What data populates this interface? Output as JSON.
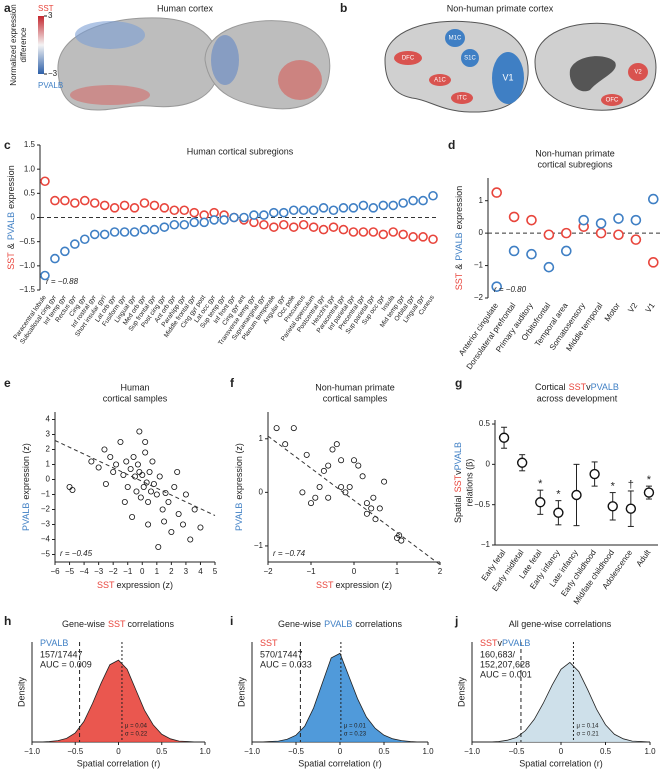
{
  "panel_a": {
    "panel_label": "a",
    "title": "Human cortex",
    "colorbar": {
      "top_label": "SST",
      "bottom_label": "PVALB",
      "label_lines": [
        "Normalized expression",
        "difference"
      ],
      "lim": [
        -3,
        3
      ],
      "ticks": [
        3,
        {
          "value": -3,
          "label": "−3"
        }
      ]
    }
  },
  "panel_b": {
    "panel_label": "b",
    "title": "Non-human primate cortex",
    "regions": [
      "DFC",
      "M1C",
      "S1C",
      "A1C",
      "ITC",
      "V1",
      "V2",
      "OFC"
    ]
  },
  "chart_data": [
    {
      "type": "dot",
      "panel_label": "c",
      "title": "Human cortical subregions",
      "ylabel_parts": [
        {
          "text": "SST",
          "color": "#e8453c"
        },
        {
          "text": "&",
          "color": "#222"
        },
        {
          "text": "PVALB",
          "color": "#3f7fc4"
        },
        {
          "text": "expression",
          "color": "#222"
        }
      ],
      "r_text": "r = −0.88",
      "refline": 0,
      "ylim": [
        -1.5,
        1.5
      ],
      "yticks": [
        {
          "value": 1.5,
          "label": "1.5"
        },
        {
          "value": 1,
          "label": "1.0"
        },
        {
          "value": 0.5,
          "label": "0.5"
        },
        0,
        {
          "value": -0.5,
          "label": "−0.5"
        },
        {
          "value": -1,
          "label": "−1.0"
        },
        {
          "value": -1.5,
          "label": "−1.5"
        }
      ],
      "categories": [
        "Paracentral lobule",
        "Subcallosal cing gyr",
        "Inf temp gyr",
        "Rectus gyr",
        "Cing gyr",
        "Inf rostral gyr",
        "Short insular gyri",
        "Lat orb gyr",
        "Fusiform gyr",
        "Lingual gyr",
        "Med orb gyr",
        "Sup frontal gyr",
        "Post cing gyr",
        "Ant orb gyr",
        "Parahipp gyr",
        "Middle frontal gyr",
        "Cing gyr post",
        "Lat occ gyr",
        "Sup temp gyr",
        "Inf front gyr",
        "Cing gyr ant",
        "Transverse temp gyr",
        "Supramarginal gyr",
        "Planum temporale",
        "Angular gyr",
        "Occ pole",
        "Precuneus",
        "Parietal operculum",
        "Postcentral gyr",
        "Heschl's gyr",
        "Paracentral gyr",
        "Inf parietal gyr",
        "Precentral gyr",
        "Sup parietal gyr",
        "Sup occ gyr",
        "Insula",
        "Mid temp gyr",
        "Orbital gyr",
        "Lingual gyr",
        "Cuneus"
      ],
      "series": [
        {
          "name": "SST",
          "color": "#e8453c",
          "values": [
            0.75,
            0.35,
            0.35,
            0.3,
            0.35,
            0.3,
            0.25,
            0.2,
            0.25,
            0.2,
            0.3,
            0.25,
            0.2,
            0.15,
            0.15,
            0.1,
            0.05,
            0.1,
            0.05,
            0.0,
            -0.05,
            -0.1,
            -0.15,
            -0.2,
            -0.15,
            -0.2,
            -0.15,
            -0.2,
            -0.25,
            -0.2,
            -0.25,
            -0.3,
            -0.3,
            -0.3,
            -0.35,
            -0.3,
            -0.35,
            -0.4,
            -0.4,
            -0.45
          ]
        },
        {
          "name": "PVALB",
          "color": "#3f7fc4",
          "values": [
            -1.2,
            -0.85,
            -0.7,
            -0.55,
            -0.45,
            -0.35,
            -0.35,
            -0.3,
            -0.3,
            -0.3,
            -0.25,
            -0.25,
            -0.2,
            -0.15,
            -0.15,
            -0.1,
            -0.1,
            -0.05,
            -0.05,
            0.0,
            0.0,
            0.05,
            0.05,
            0.1,
            0.1,
            0.15,
            0.15,
            0.15,
            0.2,
            0.15,
            0.2,
            0.2,
            0.25,
            0.2,
            0.25,
            0.25,
            0.3,
            0.35,
            0.35,
            0.45
          ]
        }
      ]
    },
    {
      "type": "dot",
      "panel_label": "d",
      "title_lines": [
        "Non-human primate",
        "cortical subregions"
      ],
      "ylabel_parts": [
        {
          "text": "SST",
          "color": "#e8453c"
        },
        {
          "text": "&",
          "color": "#222"
        },
        {
          "text": "PVALB",
          "color": "#3f7fc4"
        },
        {
          "text": "expression",
          "color": "#222"
        }
      ],
      "r_text": "r = −0.80",
      "refline": 0,
      "ylim": [
        -2,
        1.7
      ],
      "yticks": [
        1,
        0,
        {
          "value": -1,
          "label": "−1"
        },
        {
          "value": -2,
          "label": "−2"
        }
      ],
      "categories": [
        "Anterior cingulate",
        "Dorsolateral prefrontal",
        "Primary auditory",
        "Orbitofrontal",
        "Temporal area",
        "Somatosensory",
        "Middle temporal",
        "Motor",
        "V2",
        "V1"
      ],
      "series": [
        {
          "name": "SST",
          "color": "#e8453c",
          "values": [
            1.25,
            0.5,
            0.4,
            -0.05,
            0.0,
            0.2,
            0.0,
            -0.05,
            -0.2,
            -0.9
          ]
        },
        {
          "name": "PVALB",
          "color": "#3f7fc4",
          "values": [
            -1.65,
            -0.55,
            -0.65,
            -1.05,
            -0.55,
            0.4,
            0.3,
            0.45,
            0.4,
            1.05
          ]
        }
      ]
    },
    {
      "type": "scatter",
      "panel_label": "e",
      "title_lines": [
        "Human",
        "cortical samples"
      ],
      "xlabel_parts": [
        {
          "text": "SST",
          "color": "#e8453c"
        },
        {
          "text": "expression (z)",
          "color": "#222"
        }
      ],
      "ylabel_parts": [
        {
          "text": "PVALB",
          "color": "#3f7fc4"
        },
        {
          "text": "expression (z)",
          "color": "#222"
        }
      ],
      "r_text": "r = −0.45",
      "xlim": [
        -6,
        5
      ],
      "xticks": [
        {
          "value": -6,
          "label": "−6"
        },
        {
          "value": -5,
          "label": "−5"
        },
        {
          "value": -4,
          "label": "−4"
        },
        {
          "value": -3,
          "label": "−3"
        },
        {
          "value": -2,
          "label": "−2"
        },
        {
          "value": -1,
          "label": "−1"
        },
        0,
        1,
        2,
        3,
        4,
        5
      ],
      "ylim": [
        -5.5,
        4.5
      ],
      "yticks": [
        {
          "value": -5,
          "label": "−5"
        },
        {
          "value": -4,
          "label": "−4"
        },
        {
          "value": -3,
          "label": "−3"
        },
        {
          "value": -2,
          "label": "−2"
        },
        {
          "value": -1,
          "label": "−1"
        },
        0,
        1,
        2,
        3,
        4
      ],
      "x": [
        -5,
        -4.8,
        -3.5,
        -3,
        -2.6,
        -2.2,
        -2,
        -1.8,
        -1.5,
        -1.3,
        -1.1,
        -1,
        -0.8,
        -0.6,
        -0.5,
        -0.4,
        -0.3,
        -0.2,
        -0.1,
        0,
        0.1,
        0.2,
        0.3,
        0.4,
        0.5,
        0.6,
        0.8,
        1,
        1.2,
        1.4,
        1.6,
        1.8,
        2,
        2.2,
        2.5,
        2.8,
        3,
        3.3,
        3.6,
        4,
        -1.2,
        -0.7,
        0.2,
        0.7,
        1.1,
        -0.2,
        0.4,
        1.5,
        2.4,
        -2.5
      ],
      "values": [
        -0.5,
        -0.7,
        1.2,
        0.8,
        2.0,
        1.5,
        0.5,
        1.0,
        2.5,
        0.3,
        1.2,
        -0.5,
        0.7,
        1.5,
        0.2,
        -0.8,
        1.0,
        0.5,
        -1.2,
        0.3,
        -0.5,
        1.8,
        -0.2,
        -1.5,
        0.5,
        -0.8,
        -0.3,
        -1.0,
        0.2,
        -2.0,
        -0.9,
        -1.5,
        -3.5,
        -0.5,
        -2.3,
        -3.0,
        -1.0,
        -4.0,
        -2.0,
        -3.2,
        -1.5,
        -2.5,
        2.5,
        1.2,
        -4.5,
        3.2,
        -3.0,
        -2.8,
        0.5,
        -0.3
      ],
      "fit": {
        "x": [
          -6,
          5
        ],
        "y": [
          2.6,
          -2.4
        ]
      }
    },
    {
      "type": "scatter",
      "panel_label": "f",
      "title_lines": [
        "Non-human primate",
        "cortical samples"
      ],
      "xlabel_parts": [
        {
          "text": "SST",
          "color": "#e8453c"
        },
        {
          "text": "expression (z)",
          "color": "#222"
        }
      ],
      "ylabel_parts": [
        {
          "text": "PVALB",
          "color": "#3f7fc4"
        },
        {
          "text": "expression (z)",
          "color": "#222"
        }
      ],
      "r_text": "r = −0.74",
      "xlim": [
        -2,
        2
      ],
      "xticks": [
        {
          "value": -2,
          "label": "−2"
        },
        {
          "value": -1,
          "label": "−1"
        },
        0,
        1,
        2
      ],
      "ylim": [
        -1.3,
        1.5
      ],
      "yticks": [
        {
          "value": -1,
          "label": "−1"
        },
        0,
        1
      ],
      "x": [
        -1.8,
        -1.6,
        -1.4,
        -1.1,
        -1.0,
        -0.9,
        -0.8,
        -0.7,
        -0.6,
        -0.5,
        -0.4,
        -0.3,
        -0.2,
        -0.1,
        0,
        0.1,
        0.2,
        0.3,
        0.4,
        0.45,
        0.5,
        0.6,
        0.7,
        1.0,
        1.05,
        1.1,
        -1.2,
        -0.3,
        0.3,
        -0.6
      ],
      "values": [
        1.2,
        0.9,
        1.2,
        0.7,
        -0.2,
        -0.1,
        0.1,
        0.4,
        0.5,
        0.8,
        0.9,
        0.1,
        0.0,
        0.1,
        0.6,
        0.5,
        0.3,
        -0.2,
        -0.3,
        -0.1,
        -0.5,
        -0.3,
        0.2,
        -0.85,
        -0.8,
        -0.9,
        0.0,
        0.6,
        -0.4,
        -0.1
      ],
      "fit": {
        "x": [
          -2,
          2
        ],
        "y": [
          1.05,
          -1.35
        ]
      }
    },
    {
      "type": "errorbar",
      "panel_label": "g",
      "title_parts": [
        {
          "text": "Cortical",
          "color": "#222"
        },
        {
          "text": "SST",
          "color": "#e8453c"
        },
        {
          "text": "v",
          "color": "#222"
        },
        {
          "text": "PVALB",
          "color": "#3f7fc4"
        }
      ],
      "title_line2": "across development",
      "ylabel_parts": [
        {
          "text": "Spatial",
          "color": "#222"
        },
        {
          "text": "SST",
          "color": "#e8453c"
        },
        {
          "text": "v",
          "color": "#222"
        },
        {
          "text": "PVALB",
          "color": "#3f7fc4"
        }
      ],
      "ylabel_line2": "relations (β)",
      "ylim": [
        -1,
        0.55
      ],
      "yticks": [
        0.5,
        0,
        {
          "value": -0.5,
          "label": "−0.5"
        },
        {
          "value": -1,
          "label": "−1"
        }
      ],
      "categories": [
        "Early fetal",
        "Early midfetal",
        "Late fetal",
        "Early infancy",
        "Late infancy",
        "Early childhood",
        "Mid/late childhood",
        "Adolescence",
        "Adult"
      ],
      "values": [
        0.33,
        0.02,
        -0.47,
        -0.6,
        -0.38,
        -0.12,
        -0.52,
        -0.55,
        -0.35
      ],
      "errors": [
        0.13,
        0.1,
        0.15,
        0.15,
        0.38,
        0.15,
        0.17,
        0.22,
        0.08
      ],
      "significance": [
        null,
        null,
        "*",
        "*",
        null,
        null,
        "*",
        "†",
        "*"
      ]
    },
    {
      "type": "density",
      "panel_label": "h",
      "title_parts": [
        {
          "text": "Gene-wise",
          "color": "#222"
        },
        {
          "text": "SST",
          "color": "#e8453c"
        },
        {
          "text": "correlations",
          "color": "#222"
        }
      ],
      "xlabel": "Spatial correlation (r)",
      "ylabel": "Density",
      "color": "#e8453c",
      "label_parts": [
        {
          "text": "PVALB",
          "color": "#3f7fc4"
        }
      ],
      "label_lines": [
        "157/17447",
        "AUC = 0.009"
      ],
      "stats": [
        "μ = 0.04",
        "σ = 0.22"
      ],
      "ref_line": -0.45,
      "mean_line": 0.04,
      "xlim": [
        -1,
        1
      ],
      "xticks": [
        {
          "value": -1,
          "label": "−1.0"
        },
        {
          "value": -0.5,
          "label": "−0.5"
        },
        0,
        0.5,
        {
          "value": 1,
          "label": "1.0"
        }
      ],
      "ylim": [
        0,
        2.2
      ],
      "x": [
        -1,
        -0.9,
        -0.8,
        -0.7,
        -0.6,
        -0.5,
        -0.4,
        -0.3,
        -0.2,
        -0.1,
        0,
        0.1,
        0.2,
        0.3,
        0.4,
        0.5,
        0.6,
        0.7,
        0.8,
        0.9,
        1
      ],
      "values": [
        0,
        0,
        0.01,
        0.03,
        0.08,
        0.2,
        0.45,
        0.85,
        1.3,
        1.7,
        1.8,
        1.6,
        1.15,
        0.7,
        0.38,
        0.17,
        0.07,
        0.02,
        0.01,
        0,
        0
      ]
    },
    {
      "type": "density",
      "panel_label": "i",
      "title_parts": [
        {
          "text": "Gene-wise",
          "color": "#222"
        },
        {
          "text": "PVALB",
          "color": "#3f7fc4"
        },
        {
          "text": "correlations",
          "color": "#222"
        }
      ],
      "xlabel": "Spatial correlation (r)",
      "ylabel": "Density",
      "color": "#3d8fd6",
      "label_parts": [
        {
          "text": "SST",
          "color": "#e8453c"
        }
      ],
      "label_lines": [
        "570/17447",
        "AUC = 0.033"
      ],
      "stats": [
        "μ = 0.01",
        "σ = 0.23"
      ],
      "ref_line": -0.45,
      "mean_line": 0.01,
      "xlim": [
        -1,
        1
      ],
      "xticks": [
        {
          "value": -1,
          "label": "−1.0"
        },
        {
          "value": -0.5,
          "label": "−0.5"
        },
        0,
        0.5,
        {
          "value": 1,
          "label": "1.0"
        }
      ],
      "ylim": [
        0,
        2.2
      ],
      "x": [
        -1,
        -0.9,
        -0.8,
        -0.7,
        -0.6,
        -0.5,
        -0.4,
        -0.3,
        -0.2,
        -0.1,
        0,
        0.1,
        0.2,
        0.3,
        0.4,
        0.5,
        0.6,
        0.7,
        0.8,
        0.9,
        1
      ],
      "values": [
        0,
        0,
        0.01,
        0.02,
        0.06,
        0.15,
        0.35,
        0.75,
        1.3,
        1.85,
        1.95,
        1.45,
        0.95,
        0.55,
        0.3,
        0.15,
        0.07,
        0.03,
        0.01,
        0,
        0
      ]
    },
    {
      "type": "density",
      "panel_label": "j",
      "title_parts": [
        {
          "text": "All gene-wise correlations",
          "color": "#222"
        }
      ],
      "xlabel": "Spatial correlation (r)",
      "ylabel": "Density",
      "color": "#c9dde8",
      "label_parts": [
        {
          "text": "SST",
          "color": "#e8453c"
        },
        {
          "text": "v",
          "color": "#222"
        },
        {
          "text": "PVALB",
          "color": "#3f7fc4"
        }
      ],
      "label_lines": [
        "160,683/",
        "152,207,628",
        "AUC = 0.001"
      ],
      "stats": [
        "μ = 0.14",
        "σ = 0.21"
      ],
      "ref_line": -0.45,
      "mean_line": 0.14,
      "xlim": [
        -1,
        1
      ],
      "xticks": [
        {
          "value": -1,
          "label": "−1.0"
        },
        {
          "value": -0.5,
          "label": "−0.5"
        },
        0,
        0.5,
        {
          "value": 1,
          "label": "1.0"
        }
      ],
      "ylim": [
        0,
        2.2
      ],
      "x": [
        -1,
        -0.9,
        -0.8,
        -0.7,
        -0.6,
        -0.5,
        -0.4,
        -0.3,
        -0.2,
        -0.1,
        0,
        0.1,
        0.2,
        0.3,
        0.4,
        0.5,
        0.6,
        0.7,
        0.8,
        0.9,
        1
      ],
      "values": [
        0,
        0,
        0,
        0.01,
        0.04,
        0.1,
        0.25,
        0.5,
        0.85,
        1.25,
        1.6,
        1.75,
        1.55,
        1.15,
        0.72,
        0.38,
        0.17,
        0.07,
        0.02,
        0.01,
        0
      ]
    }
  ]
}
